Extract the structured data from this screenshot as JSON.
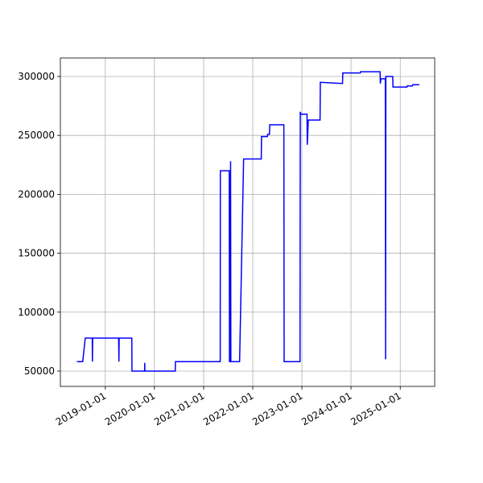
{
  "chart_data": {
    "type": "line",
    "x": [
      "2018-06-04",
      "2018-07-17",
      "2018-08-05",
      "2018-09-26",
      "2018-09-27",
      "2018-09-29",
      "2019-04-10",
      "2019-04-12",
      "2019-04-14",
      "2019-07-17",
      "2019-07-18",
      "2019-10-20",
      "2019-10-21",
      "2019-10-22",
      "2020-06-04",
      "2020-06-05",
      "2021-05-04",
      "2021-05-05",
      "2021-07-10",
      "2021-07-12",
      "2021-07-18",
      "2021-07-20",
      "2021-07-22",
      "2021-09-25",
      "2021-10-25",
      "2022-03-05",
      "2022-03-07",
      "2022-04-20",
      "2022-04-22",
      "2022-05-05",
      "2022-05-07",
      "2022-08-20",
      "2022-08-22",
      "2022-12-18",
      "2022-12-20",
      "2022-12-24",
      "2023-02-08",
      "2023-02-10",
      "2023-02-12",
      "2023-02-18",
      "2023-05-16",
      "2023-05-18",
      "2023-10-30",
      "2023-11-01",
      "2024-03-10",
      "2024-03-12",
      "2024-08-04",
      "2024-08-06",
      "2024-08-10",
      "2024-09-12",
      "2024-09-14",
      "2024-09-16",
      "2024-11-06",
      "2024-11-08",
      "2025-02-20",
      "2025-02-22",
      "2025-04-02",
      "2025-04-04",
      "2025-05-23"
    ],
    "series": [
      {
        "color": "#0000ff",
        "values": [
          58000,
          58000,
          78000,
          78000,
          58000,
          78000,
          78000,
          58000,
          78000,
          78000,
          50000,
          50000,
          57000,
          50000,
          50000,
          58000,
          58000,
          220000,
          220000,
          58000,
          58000,
          228000,
          58000,
          58000,
          230000,
          230000,
          249000,
          249000,
          251000,
          251000,
          259000,
          259000,
          58000,
          58000,
          270000,
          268000,
          268000,
          242000,
          247000,
          263000,
          263000,
          295000,
          294000,
          303000,
          303000,
          304000,
          304000,
          294000,
          298000,
          298000,
          60000,
          300000,
          300000,
          291000,
          291000,
          292000,
          292000,
          293000,
          293000
        ]
      }
    ],
    "xlim": [
      "2018-02-01",
      "2025-09-14"
    ],
    "xticks": [
      "2019-01-01",
      "2020-01-01",
      "2021-01-01",
      "2022-01-01",
      "2023-01-01",
      "2024-01-01",
      "2025-01-01"
    ],
    "ylim": [
      37000,
      315700
    ],
    "yticks": [
      50000,
      100000,
      150000,
      200000,
      250000,
      300000
    ],
    "grid": true
  }
}
